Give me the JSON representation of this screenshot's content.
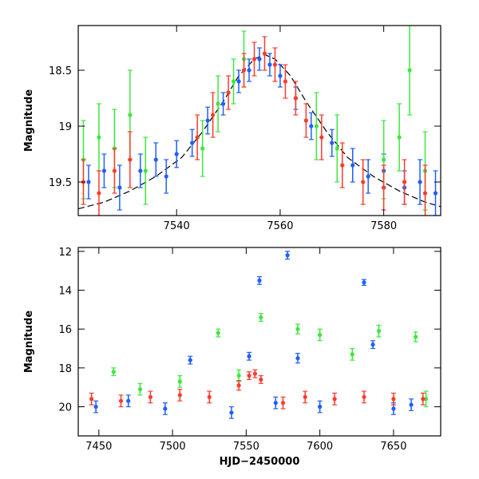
{
  "colors": {
    "blue": "#1f5fff",
    "green": "#3de83d",
    "red": "#ff3b2e",
    "model_curve": "#000000"
  },
  "chart_data": [
    {
      "type": "scatter",
      "title": "",
      "xlabel": "",
      "ylabel": "Magnitude",
      "xlim": [
        7521,
        7591
      ],
      "ylim": [
        19.8,
        18.1
      ],
      "y_inverted": true,
      "xticks": [
        7540,
        7560,
        7580
      ],
      "yticks": [
        18.5,
        19,
        19.5
      ],
      "ytick_labels": [
        "18.5",
        "19",
        "19.5"
      ],
      "grid": false,
      "legend": "none",
      "model_curve": {
        "x": [
          7521,
          7526,
          7531,
          7536,
          7541,
          7545,
          7549,
          7552,
          7555,
          7557,
          7559,
          7562,
          7565,
          7569,
          7573,
          7578,
          7583,
          7588,
          7591
        ],
        "y": [
          19.74,
          19.68,
          19.58,
          19.45,
          19.28,
          19.05,
          18.78,
          18.55,
          18.4,
          18.36,
          18.4,
          18.55,
          18.78,
          19.05,
          19.28,
          19.45,
          19.58,
          19.68,
          19.72
        ]
      },
      "series": [
        {
          "color": "blue",
          "x": [
            7523,
            7526,
            7529,
            7533,
            7536,
            7538,
            7540,
            7543,
            7546,
            7549,
            7552,
            7554,
            7556,
            7558,
            7560,
            7563,
            7566,
            7570,
            7574,
            7577,
            7580,
            7584,
            7587,
            7590
          ],
          "y": [
            19.5,
            19.4,
            19.55,
            19.4,
            19.3,
            19.45,
            19.25,
            19.15,
            18.95,
            18.8,
            18.6,
            18.5,
            18.4,
            18.45,
            18.55,
            18.75,
            19.0,
            19.15,
            19.35,
            19.45,
            19.4,
            19.55,
            19.5,
            19.6
          ],
          "err": [
            0.15,
            0.15,
            0.2,
            0.15,
            0.15,
            0.15,
            0.12,
            0.12,
            0.12,
            0.1,
            0.1,
            0.1,
            0.1,
            0.1,
            0.1,
            0.1,
            0.12,
            0.12,
            0.15,
            0.15,
            0.15,
            0.15,
            0.2,
            0.2
          ]
        },
        {
          "color": "green",
          "x": [
            7522,
            7525,
            7528,
            7531,
            7534,
            7545,
            7548,
            7551,
            7553,
            7567,
            7571,
            7580,
            7583,
            7585,
            7588
          ],
          "y": [
            19.3,
            19.1,
            19.2,
            18.9,
            19.4,
            19.2,
            18.8,
            18.6,
            18.4,
            19.0,
            19.2,
            19.3,
            19.1,
            18.5,
            19.4
          ],
          "err": [
            0.35,
            0.3,
            0.35,
            0.4,
            0.3,
            0.25,
            0.25,
            0.2,
            0.25,
            0.3,
            0.3,
            0.35,
            0.3,
            0.4,
            0.35
          ]
        },
        {
          "color": "red",
          "x": [
            7522,
            7525,
            7528,
            7531,
            7544,
            7547,
            7550,
            7553,
            7555,
            7557,
            7559,
            7561,
            7563,
            7565,
            7568,
            7572,
            7576,
            7580,
            7584,
            7588
          ],
          "y": [
            19.5,
            19.6,
            19.4,
            19.3,
            19.1,
            18.9,
            18.7,
            18.5,
            18.4,
            18.35,
            18.45,
            18.6,
            18.75,
            18.95,
            19.1,
            19.35,
            19.5,
            19.55,
            19.5,
            19.6
          ],
          "err": [
            0.2,
            0.2,
            0.2,
            0.25,
            0.2,
            0.2,
            0.15,
            0.15,
            0.15,
            0.15,
            0.15,
            0.15,
            0.15,
            0.15,
            0.2,
            0.2,
            0.2,
            0.2,
            0.2,
            0.25
          ]
        }
      ]
    },
    {
      "type": "scatter",
      "title": "",
      "xlabel": "HJD−2450000",
      "ylabel": "Magnitude",
      "xlim": [
        7436,
        7682
      ],
      "ylim": [
        21.5,
        11.8
      ],
      "y_inverted": true,
      "xticks": [
        7450,
        7500,
        7550,
        7600,
        7650
      ],
      "yticks": [
        12,
        14,
        16,
        18,
        20
      ],
      "ytick_labels": [
        "12",
        "14",
        "16",
        "18",
        "20"
      ],
      "grid": false,
      "legend": "none",
      "series": [
        {
          "color": "blue",
          "x": [
            7448,
            7470,
            7495,
            7512,
            7540,
            7552,
            7559,
            7570,
            7578,
            7585,
            7600,
            7630,
            7636,
            7650,
            7662
          ],
          "y": [
            20.0,
            19.7,
            20.1,
            17.6,
            20.3,
            17.4,
            13.5,
            19.8,
            12.2,
            17.5,
            20.0,
            13.6,
            16.8,
            20.1,
            19.9
          ],
          "err": [
            0.3,
            0.3,
            0.3,
            0.2,
            0.3,
            0.2,
            0.2,
            0.3,
            0.2,
            0.25,
            0.3,
            0.15,
            0.2,
            0.3,
            0.3
          ]
        },
        {
          "color": "green",
          "x": [
            7460,
            7478,
            7505,
            7531,
            7545,
            7560,
            7585,
            7600,
            7622,
            7640,
            7665,
            7672
          ],
          "y": [
            18.2,
            19.1,
            18.7,
            16.2,
            18.4,
            15.4,
            16.0,
            16.3,
            17.3,
            16.1,
            16.4,
            19.6
          ],
          "err": [
            0.2,
            0.3,
            0.3,
            0.2,
            0.3,
            0.2,
            0.25,
            0.3,
            0.3,
            0.3,
            0.25,
            0.4
          ]
        },
        {
          "color": "red",
          "x": [
            7445,
            7465,
            7485,
            7505,
            7525,
            7545,
            7552,
            7556,
            7560,
            7575,
            7590,
            7610,
            7630,
            7650,
            7670
          ],
          "y": [
            19.6,
            19.7,
            19.5,
            19.4,
            19.5,
            18.9,
            18.4,
            18.3,
            18.6,
            19.8,
            19.5,
            19.6,
            19.5,
            19.6,
            19.6
          ],
          "err": [
            0.3,
            0.3,
            0.3,
            0.3,
            0.3,
            0.25,
            0.2,
            0.2,
            0.2,
            0.3,
            0.3,
            0.3,
            0.3,
            0.3,
            0.3
          ]
        }
      ]
    }
  ]
}
